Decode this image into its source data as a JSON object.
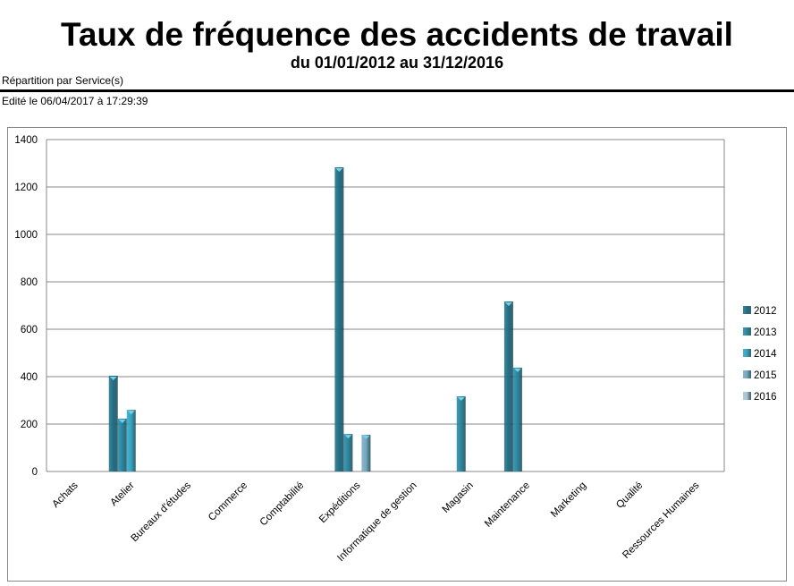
{
  "header": {
    "title": "Taux de fréquence des accidents de travail",
    "subtitle": "du 01/01/2012 au 31/12/2016",
    "repartition": "Répartition par Service(s)",
    "edited": "Edité le 06/04/2017 à 17:29:39"
  },
  "chart_data": {
    "type": "bar",
    "categories": [
      "Achats",
      "Atelier",
      "Bureaux d'études",
      "Commerce",
      "Comptabilité",
      "Expéditions",
      "Informatique de gestion",
      "Magasin",
      "Maintenance",
      "Marketing",
      "Qualité",
      "Ressources Humaines"
    ],
    "series": [
      {
        "name": "2012",
        "color": "#1f6f86",
        "values": [
          0,
          404,
          0,
          0,
          0,
          1283,
          0,
          0,
          717,
          0,
          0,
          0
        ]
      },
      {
        "name": "2013",
        "color": "#2587a2",
        "values": [
          0,
          223,
          0,
          0,
          0,
          158,
          0,
          317,
          438,
          0,
          0,
          0
        ]
      },
      {
        "name": "2014",
        "color": "#2fa5c2",
        "values": [
          0,
          260,
          0,
          0,
          0,
          0,
          0,
          0,
          0,
          0,
          0,
          0
        ]
      },
      {
        "name": "2015",
        "color": "#74a9c0",
        "values": [
          0,
          0,
          0,
          0,
          0,
          155,
          0,
          0,
          0,
          0,
          0,
          0
        ]
      },
      {
        "name": "2016",
        "color": "#a9c3d1",
        "values": [
          0,
          0,
          0,
          0,
          0,
          0,
          0,
          0,
          0,
          0,
          0,
          0
        ]
      }
    ],
    "yticks": [
      "0",
      "200",
      "400",
      "600",
      "800",
      "1000",
      "1200",
      "1400"
    ],
    "ylim": [
      0,
      1400
    ],
    "grid": true,
    "legend": "right",
    "xlabel": "",
    "ylabel": ""
  }
}
